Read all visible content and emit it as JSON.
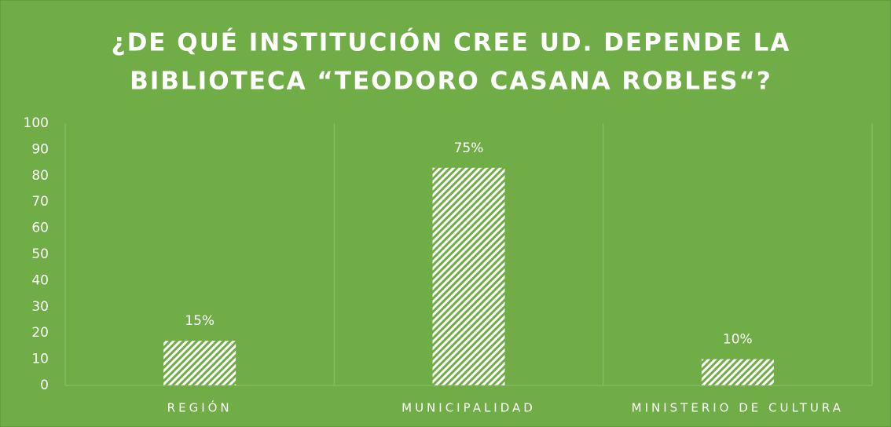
{
  "chart_data": {
    "type": "bar",
    "title": [
      "¿DE QUÉ INSTITUCIÓN CREE UD. DEPENDE LA",
      "BIBLIOTECA “TEODORO CASANA ROBLES“?"
    ],
    "categories": [
      "REGIÓN",
      "MUNICIPALIDAD",
      "MINISTERIO DE CULTURA"
    ],
    "values": [
      17,
      83,
      10
    ],
    "value_labels": [
      "15%",
      "75%",
      "10%"
    ],
    "color": "#ffffff",
    "ylim": [
      0,
      100
    ],
    "yticks": [
      0,
      10,
      20,
      30,
      40,
      50,
      60,
      70,
      80,
      90,
      100
    ],
    "grid": false
  }
}
